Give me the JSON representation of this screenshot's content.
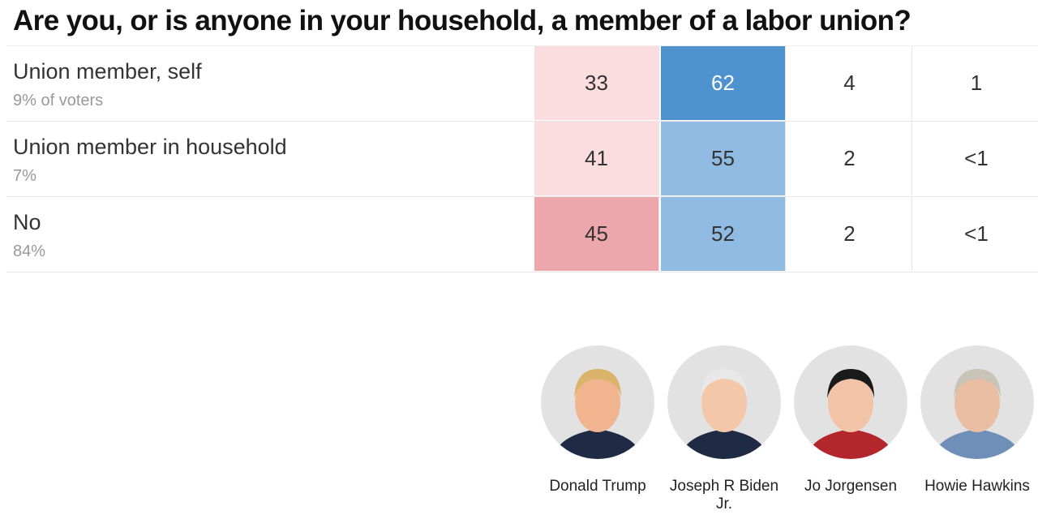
{
  "title": "Are you, or is anyone in your household, a member of a labor union?",
  "table": {
    "rows": [
      {
        "label": "Union member, self",
        "share": "9% of voters",
        "cells": [
          "33",
          "62",
          "4",
          "1"
        ]
      },
      {
        "label": "Union member in household",
        "share": "7%",
        "cells": [
          "41",
          "55",
          "2",
          "<1"
        ]
      },
      {
        "label": "No",
        "share": "84%",
        "cells": [
          "45",
          "52",
          "2",
          "<1"
        ]
      }
    ]
  },
  "candidates": [
    "Donald Trump",
    "Joseph R Biden Jr.",
    "Jo Jorgensen",
    "Howie Hawkins"
  ]
}
